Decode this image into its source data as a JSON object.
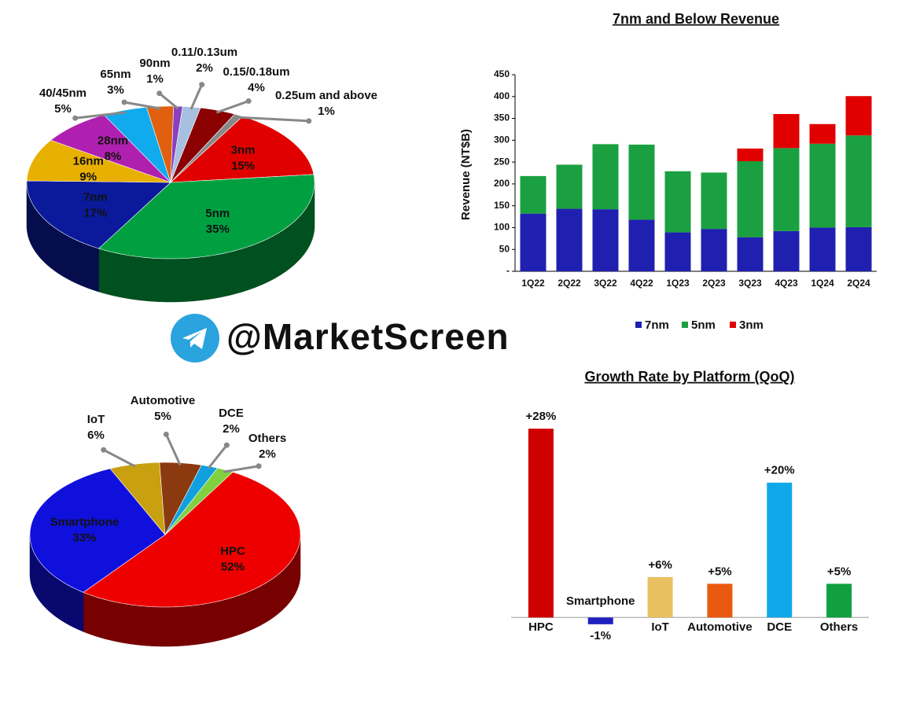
{
  "watermark": "@MarketScreen",
  "chart_data": [
    {
      "type": "pie",
      "categories": [
        "3nm",
        "5nm",
        "7nm",
        "16nm",
        "28nm",
        "40/45nm",
        "65nm",
        "90nm",
        "0.11/0.13um",
        "0.15/0.18um",
        "0.25um and above"
      ],
      "values": [
        15,
        35,
        17,
        9,
        8,
        5,
        3,
        1,
        2,
        4,
        1
      ],
      "value_labels": [
        "15%",
        "35%",
        "17%",
        "9%",
        "8%",
        "5%",
        "3%",
        "1%",
        "2%",
        "4%",
        "1%"
      ],
      "colors": [
        "#e00000",
        "#00a040",
        "#0a1a9a",
        "#e8b000",
        "#b020b0",
        "#10aaee",
        "#e06010",
        "#8a40c0",
        "#a8c0e0",
        "#8b0000",
        "#888888"
      ]
    },
    {
      "type": "bar",
      "title": "7nm and Below Revenue",
      "y_label": "Revenue (NT$B)",
      "categories": [
        "1Q22",
        "2Q22",
        "3Q22",
        "4Q22",
        "1Q23",
        "2Q23",
        "3Q23",
        "4Q23",
        "1Q24",
        "2Q24"
      ],
      "series": [
        {
          "name": "7nm",
          "color": "#2020b0",
          "values": [
            132,
            143,
            142,
            118,
            89,
            97,
            78,
            92,
            100,
            101
          ]
        },
        {
          "name": "5nm",
          "color": "#1aa040",
          "values": [
            86,
            101,
            149,
            172,
            140,
            129,
            174,
            190,
            192,
            210
          ]
        },
        {
          "name": "3nm",
          "color": "#e00000",
          "values": [
            0,
            0,
            0,
            0,
            0,
            0,
            29,
            78,
            45,
            90
          ]
        }
      ],
      "ylim": [
        0,
        450
      ],
      "yticks": [
        {
          "value": 0,
          "label": "-"
        },
        50,
        100,
        150,
        200,
        250,
        300,
        350,
        400,
        450
      ],
      "stacked": true,
      "legend": "bottom"
    },
    {
      "type": "pie",
      "categories": [
        "HPC",
        "Smartphone",
        "IoT",
        "Automotive",
        "DCE",
        "Others"
      ],
      "values": [
        52,
        33,
        6,
        5,
        2,
        2
      ],
      "value_labels": [
        "52%",
        "33%",
        "6%",
        "5%",
        "2%",
        "2%"
      ],
      "colors": [
        "#ee0000",
        "#1010dd",
        "#c8a010",
        "#8b3a10",
        "#10a0e0",
        "#80d040"
      ]
    },
    {
      "type": "bar",
      "title": "Growth Rate by Platform (QoQ)",
      "categories": [
        "HPC",
        "Smartphone",
        "IoT",
        "Automotive",
        "DCE",
        "Others"
      ],
      "values": [
        28,
        -1,
        6,
        5,
        20,
        5
      ],
      "value_labels": [
        "+28%",
        "-1%",
        "+6%",
        "+5%",
        "+20%",
        "+5%"
      ],
      "colors": [
        "#d00000",
        "#2020c0",
        "#e8c060",
        "#e85a10",
        "#10a8e8",
        "#10a040"
      ],
      "ylim": [
        -3,
        30
      ]
    }
  ]
}
